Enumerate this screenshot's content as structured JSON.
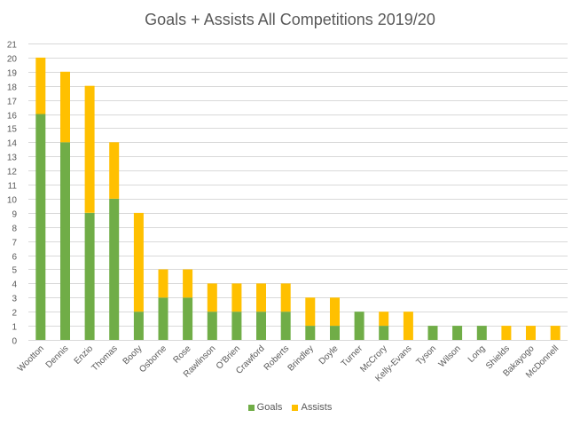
{
  "chart_data": {
    "type": "bar",
    "stacked": true,
    "title": "Goals + Assists All Competitions 2019/20",
    "xlabel": "",
    "ylabel": "",
    "ylim": [
      0,
      21
    ],
    "yticks": [
      "0",
      "1",
      "2",
      "3",
      "4",
      "5",
      "6",
      "7",
      "8",
      "9",
      "10",
      "11",
      "12",
      "13",
      "14",
      "15",
      "16",
      "17",
      "18",
      "19",
      "20",
      "21"
    ],
    "grid": true,
    "legend_position": "bottom",
    "categories": [
      "Wootton",
      "Dennis",
      "Enzio",
      "Thomas",
      "Booty",
      "Osborne",
      "Rose",
      "Rawlinson",
      "O'Brien",
      "Crawford",
      "Roberts",
      "Brindley",
      "Doyle",
      "Turner",
      "McCrory",
      "Kelly-Evans",
      "Tyson",
      "Wilson",
      "Long",
      "Shields",
      "Bakayogo",
      "McDonnell"
    ],
    "series": [
      {
        "name": "Goals",
        "color": "#70ad47",
        "values": [
          16,
          14,
          9,
          10,
          2,
          3,
          3,
          2,
          2,
          2,
          2,
          1,
          1,
          2,
          1,
          0,
          1,
          1,
          1,
          0,
          0,
          0
        ]
      },
      {
        "name": "Assists",
        "color": "#ffc000",
        "values": [
          4,
          5,
          9,
          4,
          7,
          2,
          2,
          2,
          2,
          2,
          2,
          2,
          2,
          0,
          1,
          2,
          0,
          0,
          0,
          1,
          1,
          1
        ]
      }
    ]
  }
}
